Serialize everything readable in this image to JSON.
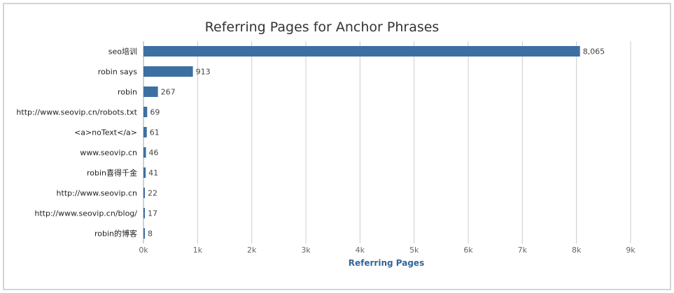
{
  "chart_data": {
    "type": "bar",
    "orientation": "horizontal",
    "title": "Referring Pages for Anchor Phrases",
    "xlabel": "Referring Pages",
    "ylabel": "",
    "categories": [
      "seo培训",
      "robin says",
      "robin",
      "http://www.seovip.cn/robots.txt",
      "<a>noText</a>",
      "www.seovip.cn",
      "robin喜得千金",
      "http://www.seovip.cn",
      "http://www.seovip.cn/blog/",
      "robin的博客"
    ],
    "values": [
      8065,
      913,
      267,
      69,
      61,
      46,
      41,
      22,
      17,
      8
    ],
    "value_labels": [
      "8,065",
      "913",
      "267",
      "69",
      "61",
      "46",
      "41",
      "22",
      "17",
      "8"
    ],
    "xlim": [
      0,
      9000
    ],
    "xticks": [
      "0k",
      "1k",
      "2k",
      "3k",
      "4k",
      "5k",
      "6k",
      "7k",
      "8k",
      "9k"
    ],
    "grid": true,
    "bar_color": "#3e6fa3"
  }
}
